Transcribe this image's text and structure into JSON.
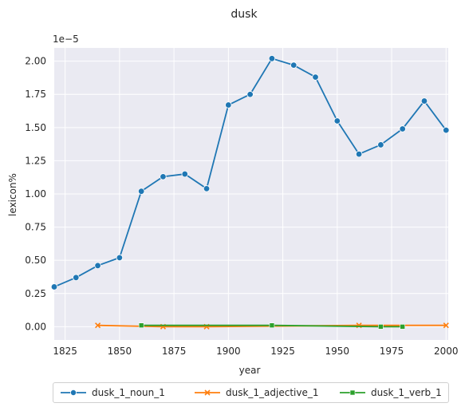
{
  "chart_data": {
    "type": "line",
    "title": "dusk",
    "xlabel": "year",
    "ylabel": "lexicon%",
    "offset_label": "1e−5",
    "xlim": [
      1820,
      2001
    ],
    "ylim": [
      -0.1,
      2.1
    ],
    "xticks": [
      1825,
      1850,
      1875,
      1900,
      1925,
      1950,
      1975,
      2000
    ],
    "yticks": [
      0.0,
      0.25,
      0.5,
      0.75,
      1.0,
      1.25,
      1.5,
      1.75,
      2.0
    ],
    "ytick_labels": [
      "0.00",
      "0.25",
      "0.50",
      "0.75",
      "1.00",
      "1.25",
      "1.50",
      "1.75",
      "2.00"
    ],
    "grid": true,
    "legend_position": "bottom",
    "series": [
      {
        "name": "dusk_1_noun_1",
        "color": "#1f77b4",
        "marker": "circle",
        "x": [
          1820,
          1830,
          1840,
          1850,
          1860,
          1870,
          1880,
          1890,
          1900,
          1910,
          1920,
          1930,
          1940,
          1950,
          1960,
          1970,
          1980,
          1990,
          2000
        ],
        "y": [
          0.3,
          0.37,
          0.46,
          0.52,
          1.02,
          1.13,
          1.15,
          1.04,
          1.67,
          1.75,
          2.02,
          1.97,
          1.88,
          1.55,
          1.3,
          1.37,
          1.49,
          1.7,
          1.48
        ]
      },
      {
        "name": "dusk_1_adjective_1",
        "color": "#ff7f0e",
        "marker": "x",
        "x": [
          1840,
          1870,
          1890,
          1960,
          2000
        ],
        "y": [
          0.01,
          0.0,
          0.0,
          0.01,
          0.01
        ]
      },
      {
        "name": "dusk_1_verb_1",
        "color": "#2ca02c",
        "marker": "square",
        "x": [
          1860,
          1920,
          1970,
          1980
        ],
        "y": [
          0.01,
          0.01,
          0.0,
          0.0
        ]
      }
    ]
  }
}
